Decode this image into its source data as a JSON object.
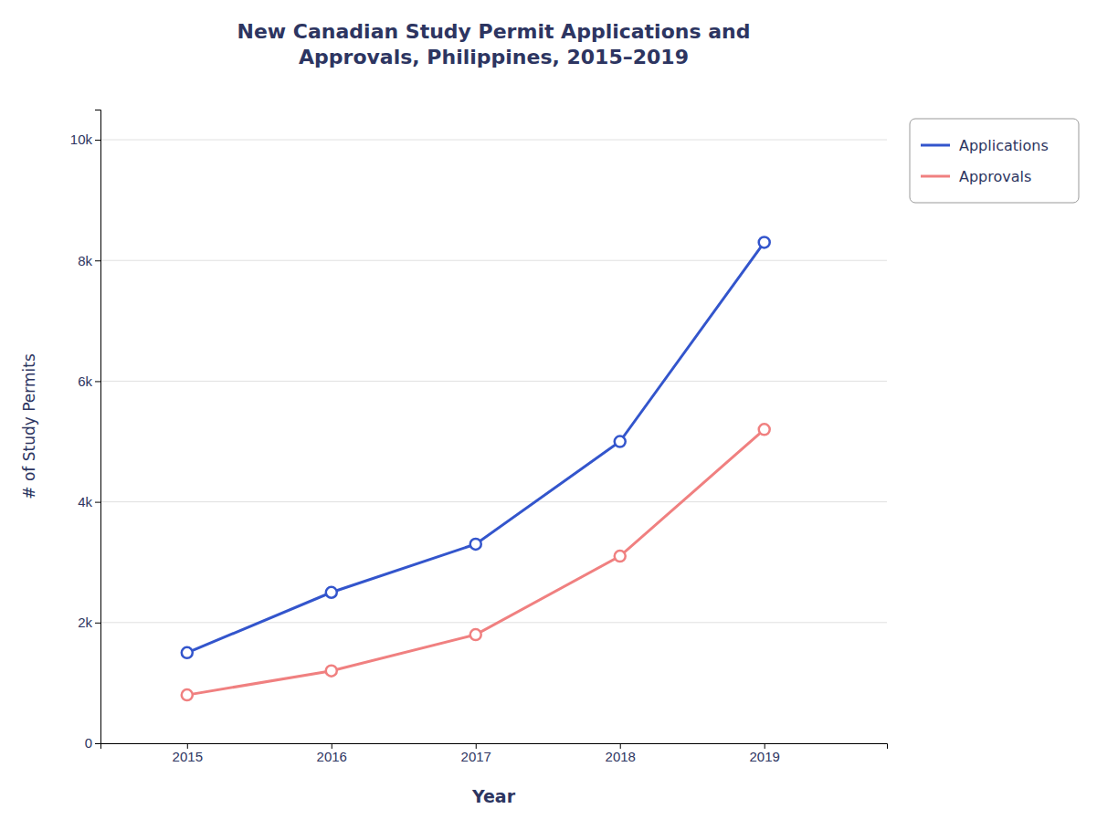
{
  "chart_data": {
    "type": "line",
    "title": "New Canadian Study Permit Applications and\nApprovals, Philippines, 2015–2019",
    "x_label": "Year",
    "y_label": "# of Study Permits",
    "x": [
      2015,
      2016,
      2017,
      2018,
      2019
    ],
    "series": [
      {
        "name": "Applications",
        "color": "#3355cc",
        "marker": "circle",
        "values": [
          1500,
          2500,
          3300,
          5000,
          8300
        ]
      },
      {
        "name": "Approvals",
        "color": "#f08080",
        "marker": "circle",
        "values": [
          800,
          1200,
          1800,
          3100,
          5200
        ]
      }
    ],
    "xlim": [
      2014.4,
      2019.85
    ],
    "xticks": [
      2015,
      2016,
      2017,
      2018,
      2019
    ],
    "ylim": [
      0,
      10500
    ],
    "yticks": [
      0,
      {
        "value": 2000,
        "label": "2k"
      },
      {
        "value": 4000,
        "label": "4k"
      },
      {
        "value": 6000,
        "label": "6k"
      },
      {
        "value": 8000,
        "label": "8k"
      },
      {
        "value": 10000,
        "label": "10k"
      }
    ],
    "grid": true,
    "legend": "upper right"
  }
}
